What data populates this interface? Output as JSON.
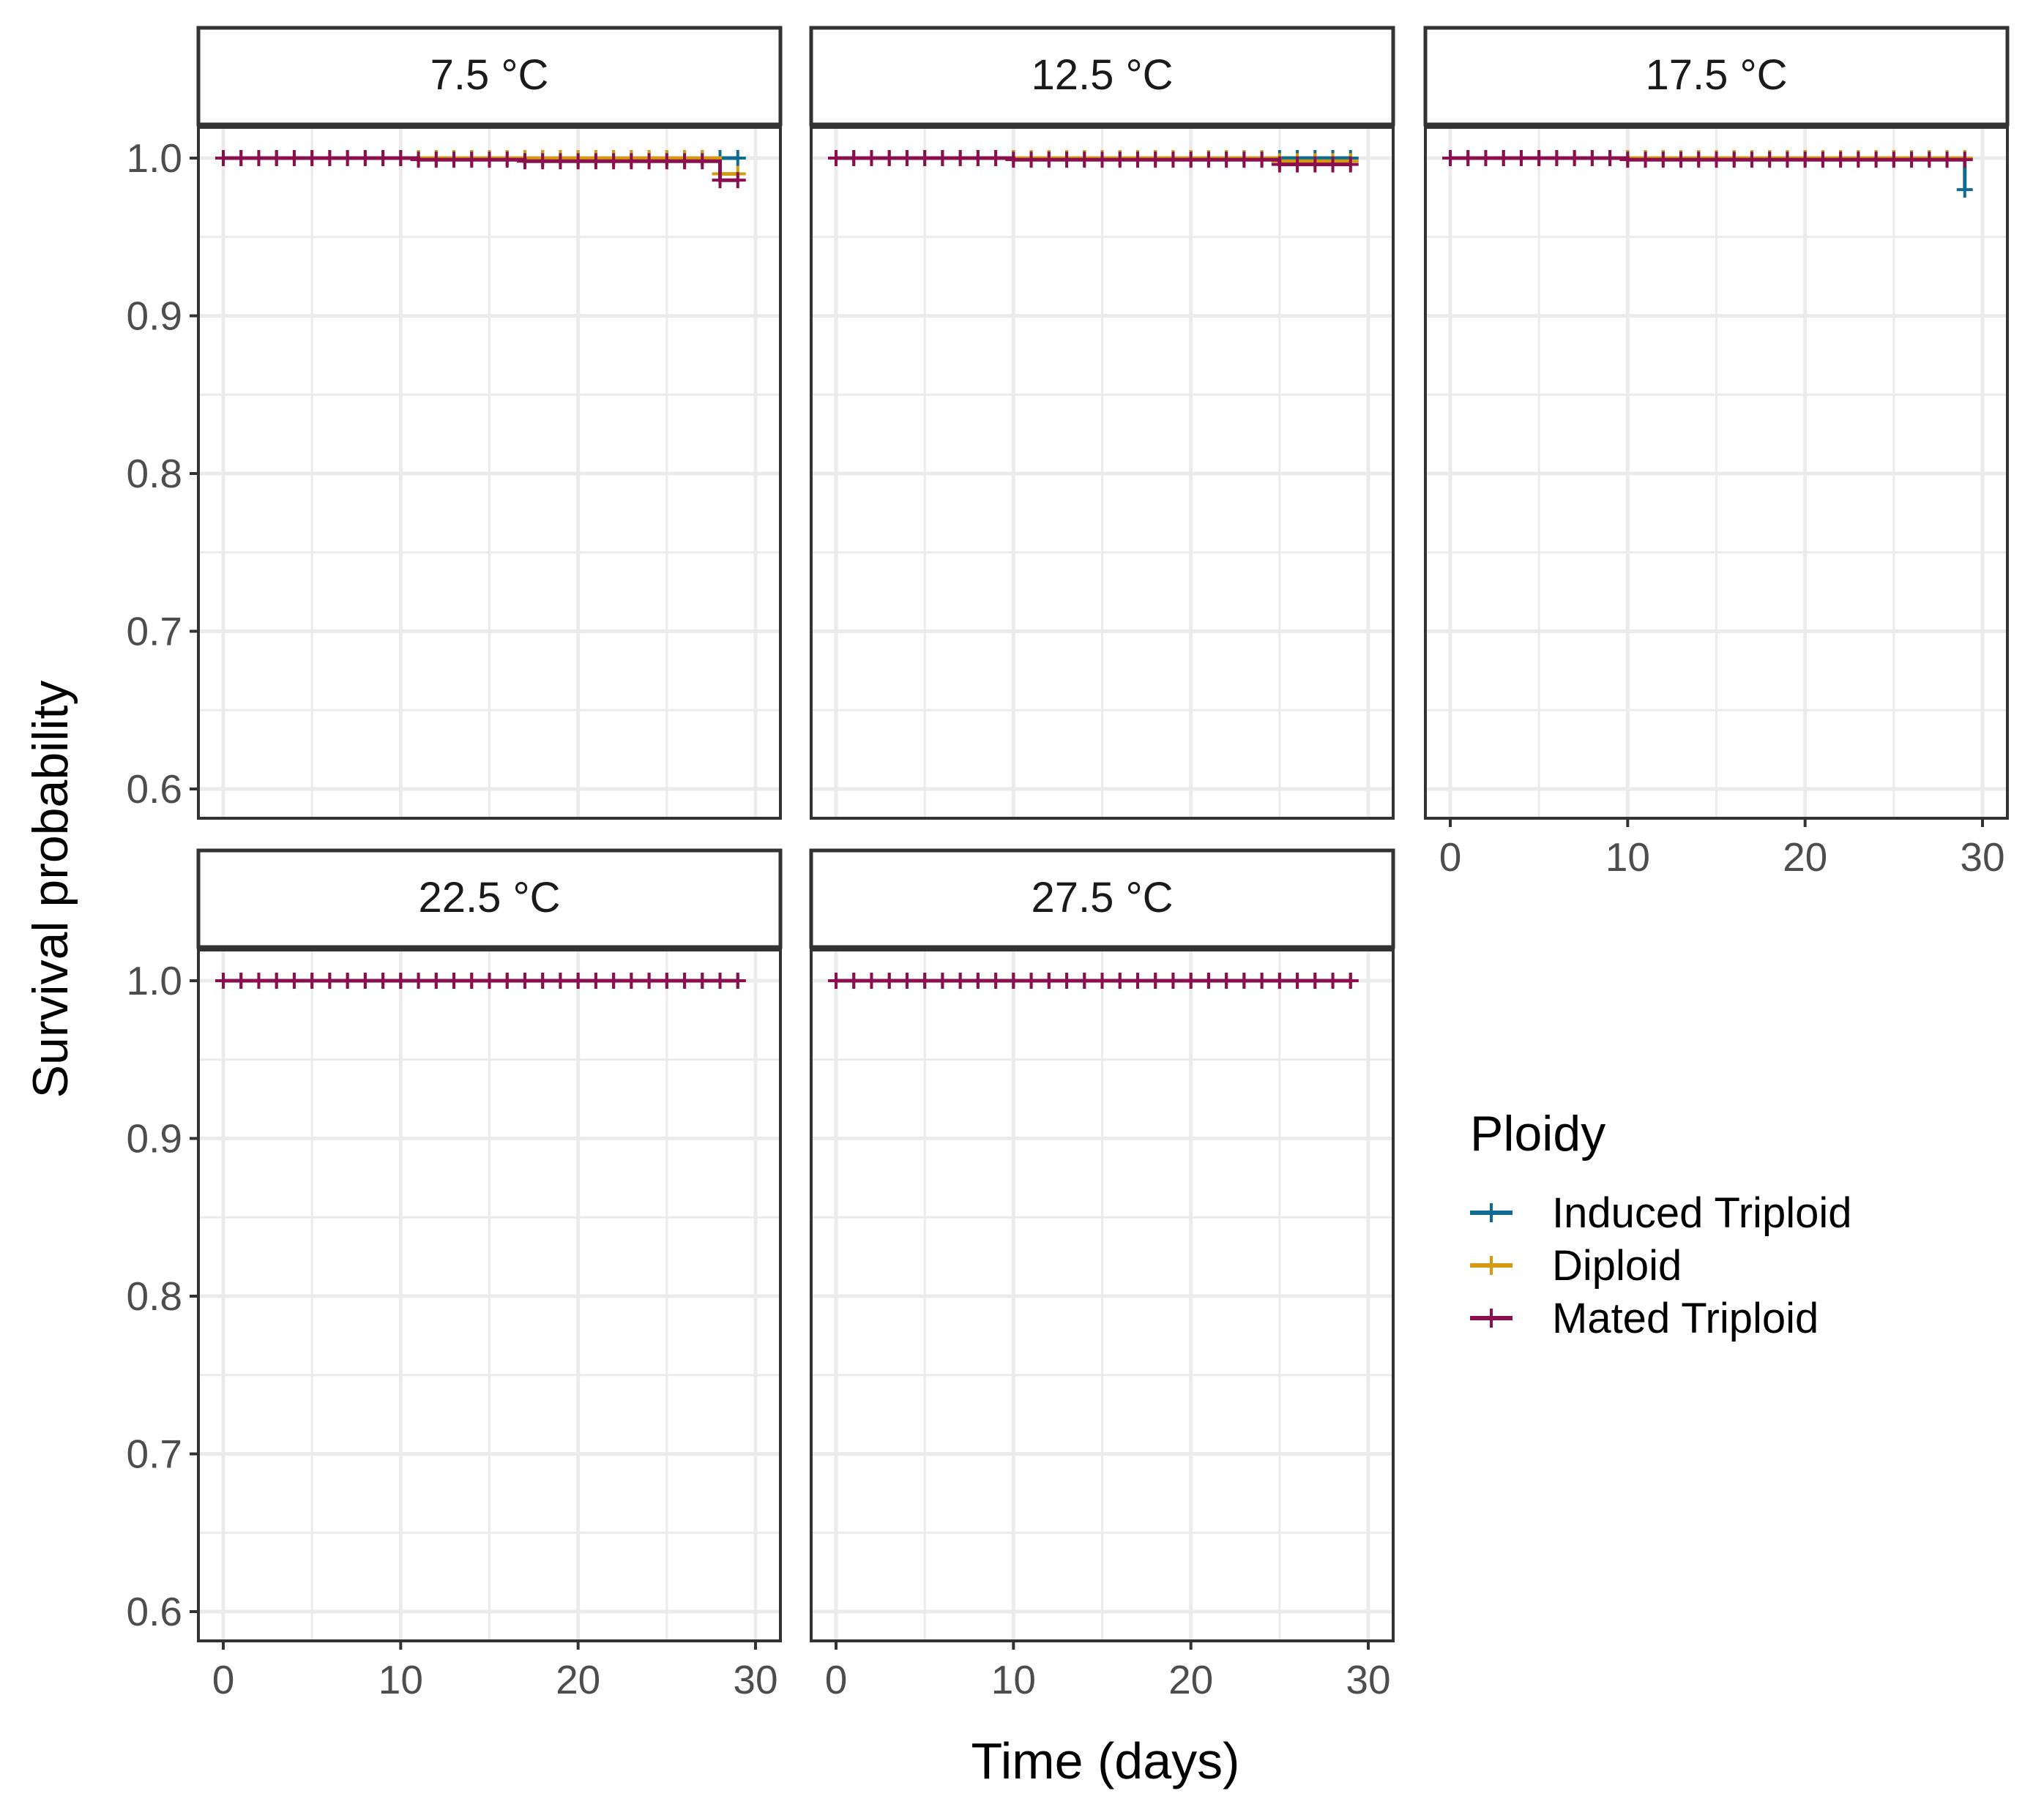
{
  "chart_data": {
    "type": "line",
    "subtype": "kaplan-meier survival, faceted",
    "ylabel": "Survival probability",
    "xlabel": "Time (days)",
    "xlim": [
      0,
      30
    ],
    "ylim": [
      0.6,
      1.0
    ],
    "x_ticks": [
      0,
      10,
      20,
      30
    ],
    "y_ticks": [
      "0.6",
      "0.7",
      "0.8",
      "0.9",
      "1.0"
    ],
    "grid": true,
    "legend": {
      "title": "Ploidy",
      "position": "right",
      "entries": [
        "Induced Triploid",
        "Diploid",
        "Mated Triploid"
      ]
    },
    "colors": {
      "Induced Triploid": "#0f6b8f",
      "Diploid": "#d39a12",
      "Mated Triploid": "#8b0f4e",
      "panel_border": "#333333",
      "grid": "#ebebeb"
    },
    "censor_marks": "+ at each day 0-29",
    "panels": [
      {
        "label": "7.5 °C",
        "series": [
          {
            "name": "Induced Triploid",
            "x": [
              0,
              29
            ],
            "y": [
              1.0,
              1.0
            ]
          },
          {
            "name": "Diploid",
            "x": [
              0,
              28,
              28,
              29
            ],
            "y": [
              1.0,
              1.0,
              0.99,
              0.99
            ]
          },
          {
            "name": "Mated Triploid",
            "x": [
              0,
              11,
              11,
              17,
              17,
              28,
              28,
              29
            ],
            "y": [
              1.0,
              1.0,
              0.999,
              0.999,
              0.998,
              0.998,
              0.986,
              0.986
            ]
          }
        ]
      },
      {
        "label": "12.5  °C",
        "series": [
          {
            "name": "Induced Triploid",
            "x": [
              0,
              29
            ],
            "y": [
              1.0,
              1.0
            ]
          },
          {
            "name": "Diploid",
            "x": [
              0,
              25,
              25,
              29
            ],
            "y": [
              1.0,
              1.0,
              0.998,
              0.998
            ]
          },
          {
            "name": "Mated Triploid",
            "x": [
              0,
              10,
              10,
              25,
              25,
              29
            ],
            "y": [
              1.0,
              1.0,
              0.999,
              0.999,
              0.996,
              0.996
            ]
          }
        ]
      },
      {
        "label": "17.5  °C",
        "series": [
          {
            "name": "Induced Triploid",
            "x": [
              0,
              29,
              29
            ],
            "y": [
              1.0,
              1.0,
              0.98
            ]
          },
          {
            "name": "Diploid",
            "x": [
              0,
              29
            ],
            "y": [
              1.0,
              1.0
            ]
          },
          {
            "name": "Mated Triploid",
            "x": [
              0,
              10,
              10,
              29
            ],
            "y": [
              1.0,
              1.0,
              0.999,
              0.999
            ]
          }
        ]
      },
      {
        "label": "22.5  °C",
        "series": [
          {
            "name": "Induced Triploid",
            "x": [
              0,
              29
            ],
            "y": [
              1.0,
              1.0
            ]
          },
          {
            "name": "Diploid",
            "x": [
              0,
              29
            ],
            "y": [
              1.0,
              1.0
            ]
          },
          {
            "name": "Mated Triploid",
            "x": [
              0,
              29
            ],
            "y": [
              1.0,
              1.0
            ]
          }
        ]
      },
      {
        "label": "27.5  °C",
        "series": [
          {
            "name": "Induced Triploid",
            "x": [
              0,
              29
            ],
            "y": [
              1.0,
              1.0
            ]
          },
          {
            "name": "Diploid",
            "x": [
              0,
              29
            ],
            "y": [
              1.0,
              1.0
            ]
          },
          {
            "name": "Mated Triploid",
            "x": [
              0,
              29
            ],
            "y": [
              1.0,
              1.0
            ]
          }
        ]
      }
    ]
  }
}
